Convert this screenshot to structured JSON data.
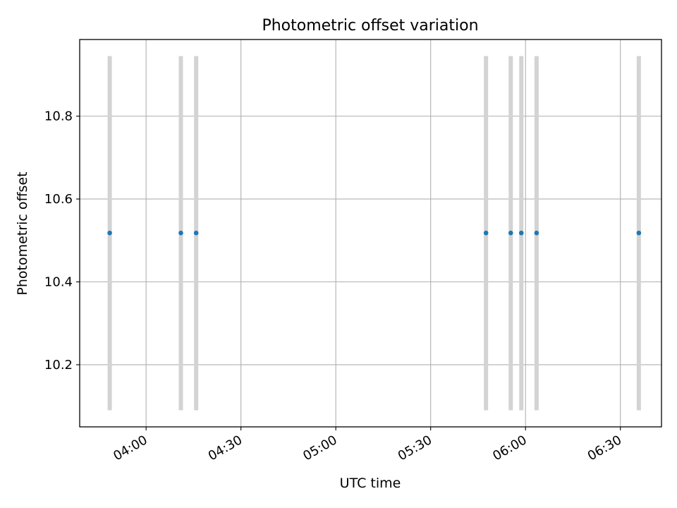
{
  "chart_data": {
    "type": "scatter",
    "title": "Photometric offset variation",
    "xlabel": "UTC time",
    "ylabel": "Photometric offset",
    "x_axis_type": "time",
    "xlim": [
      "03:39",
      "06:43"
    ],
    "ylim": [
      10.05,
      10.985
    ],
    "xticks": [
      "04:00",
      "04:30",
      "05:00",
      "05:30",
      "06:00",
      "06:30"
    ],
    "yticks": [
      10.2,
      10.4,
      10.6,
      10.8
    ],
    "grid": true,
    "legend": "none",
    "marker_color": "#1f77b4",
    "errorbar_color": "#d3d3d3",
    "points": [
      {
        "x": "03:48:30",
        "y": 10.518,
        "yerr_low": 10.09,
        "yerr_high": 10.945
      },
      {
        "x": "04:11:00",
        "y": 10.518,
        "yerr_low": 10.09,
        "yerr_high": 10.945
      },
      {
        "x": "04:15:50",
        "y": 10.518,
        "yerr_low": 10.09,
        "yerr_high": 10.945
      },
      {
        "x": "05:47:30",
        "y": 10.518,
        "yerr_low": 10.09,
        "yerr_high": 10.945
      },
      {
        "x": "05:55:20",
        "y": 10.518,
        "yerr_low": 10.09,
        "yerr_high": 10.945
      },
      {
        "x": "05:58:40",
        "y": 10.518,
        "yerr_low": 10.09,
        "yerr_high": 10.945
      },
      {
        "x": "06:03:30",
        "y": 10.518,
        "yerr_low": 10.09,
        "yerr_high": 10.945
      },
      {
        "x": "06:35:50",
        "y": 10.518,
        "yerr_low": 10.09,
        "yerr_high": 10.945
      }
    ]
  }
}
